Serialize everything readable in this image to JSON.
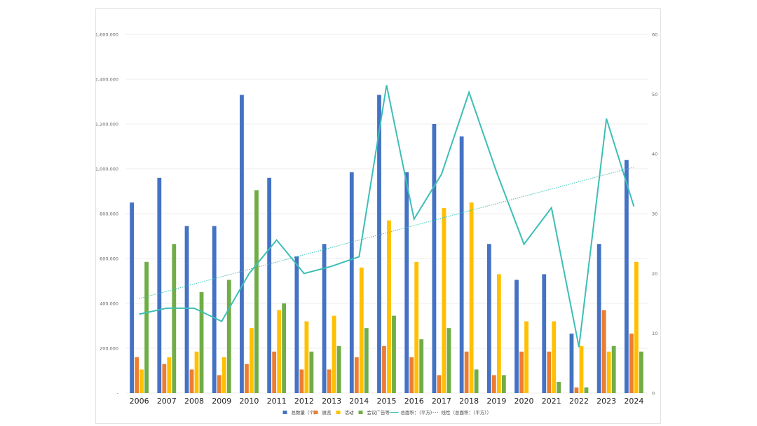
{
  "chart_data": {
    "type": "bar",
    "categories": [
      "2006",
      "2007",
      "2008",
      "2009",
      "2010",
      "2011",
      "2012",
      "2013",
      "2014",
      "2015",
      "2016",
      "2017",
      "2018",
      "2019",
      "2020",
      "2021",
      "2022",
      "2023",
      "2024"
    ],
    "ylim": [
      0,
      1600000
    ],
    "y2lim": [
      0,
      60
    ],
    "y_ticks": [
      "-",
      "200,000",
      "400,000",
      "600,000",
      "800,000",
      "1,000,000",
      "1,200,000",
      "1,400,000",
      "1,600,000"
    ],
    "y2_ticks": [
      "0",
      "10",
      "20",
      "30",
      "40",
      "50",
      "60"
    ],
    "grid": true,
    "legend_position": "bottom",
    "series": [
      {
        "name": "总数量（个）",
        "color": "#4472C4",
        "values": [
          850000,
          960000,
          745000,
          745000,
          1330000,
          960000,
          610000,
          665000,
          985000,
          1330000,
          985000,
          1200000,
          1145000,
          665000,
          505000,
          530000,
          265000,
          665000,
          1040000
        ]
      },
      {
        "name": "展览",
        "color": "#ED7D31",
        "values": [
          160000,
          130000,
          105000,
          80000,
          130000,
          185000,
          105000,
          105000,
          160000,
          210000,
          160000,
          80000,
          185000,
          80000,
          185000,
          185000,
          25000,
          370000,
          265000
        ]
      },
      {
        "name": "活动",
        "color": "#FFC000",
        "values": [
          105000,
          160000,
          185000,
          160000,
          290000,
          370000,
          320000,
          345000,
          560000,
          770000,
          585000,
          825000,
          850000,
          530000,
          320000,
          320000,
          210000,
          185000,
          585000
        ]
      },
      {
        "name": "会议广告等",
        "color": "#70AD47",
        "values": [
          585000,
          665000,
          450000,
          505000,
          905000,
          400000,
          185000,
          210000,
          290000,
          345000,
          240000,
          290000,
          105000,
          80000,
          0,
          50000,
          25000,
          210000,
          185000
        ]
      }
    ],
    "line_series": {
      "name": "总面积：（平方）",
      "color": "#3CBFB5",
      "axis": "right",
      "values": [
        13.2,
        14.2,
        14.2,
        12.0,
        20.0,
        25.6,
        20.0,
        21.2,
        22.8,
        51.5,
        29.1,
        36.6,
        50.3,
        37.0,
        24.9,
        31.0,
        7.7,
        45.9,
        31.2
      ]
    },
    "trendline": {
      "name": "线性（总面积：（平方））",
      "color": "#3CBFB5",
      "axis": "right",
      "start": 15.8,
      "end": 37.8
    }
  }
}
